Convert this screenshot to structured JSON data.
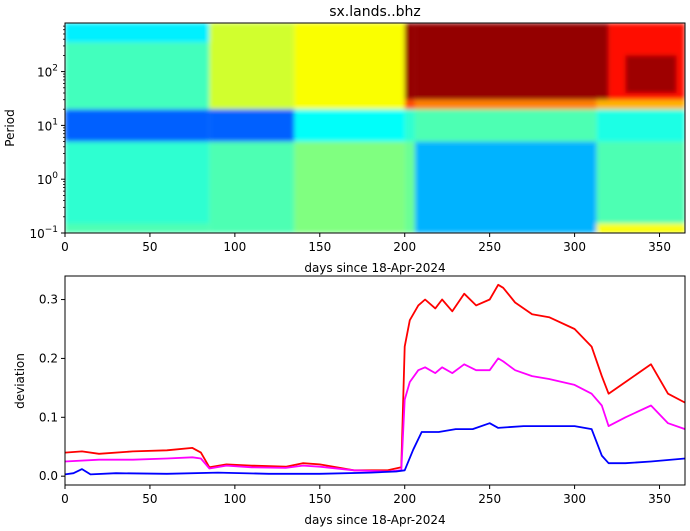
{
  "chart_data": [
    {
      "type": "heatmap",
      "title": "sx.lands..bhz",
      "xlabel": "days since 18-Apr-2024",
      "ylabel": "Period",
      "xlim": [
        0,
        365
      ],
      "ylim": [
        0.1,
        800
      ],
      "yscale": "log",
      "xticks": [
        0,
        50,
        100,
        150,
        200,
        250,
        300,
        350
      ],
      "yticks": [
        {
          "value": 0.1,
          "base": "10",
          "exp": "−1"
        },
        {
          "value": 1,
          "base": "10",
          "exp": "0"
        },
        {
          "value": 10,
          "base": "10",
          "exp": "1"
        },
        {
          "value": 100,
          "base": "10",
          "exp": "2"
        }
      ],
      "colormap": "jet",
      "regions": [
        {
          "x": [
            0,
            85
          ],
          "y": [
            0.1,
            0.15
          ],
          "level": 0.45
        },
        {
          "x": [
            0,
            85
          ],
          "y": [
            0.15,
            5
          ],
          "level": 0.42
        },
        {
          "x": [
            0,
            85
          ],
          "y": [
            5,
            20
          ],
          "level": 0.22
        },
        {
          "x": [
            0,
            85
          ],
          "y": [
            20,
            350
          ],
          "level": 0.44
        },
        {
          "x": [
            0,
            85
          ],
          "y": [
            350,
            800
          ],
          "level": 0.36
        },
        {
          "x": [
            85,
            135
          ],
          "y": [
            0.1,
            5
          ],
          "level": 0.45
        },
        {
          "x": [
            85,
            135
          ],
          "y": [
            5,
            20
          ],
          "level": 0.22
        },
        {
          "x": [
            85,
            135
          ],
          "y": [
            20,
            800
          ],
          "level": 0.58
        },
        {
          "x": [
            135,
            200
          ],
          "y": [
            0.1,
            5
          ],
          "level": 0.5
        },
        {
          "x": [
            135,
            200
          ],
          "y": [
            5,
            20
          ],
          "level": 0.38
        },
        {
          "x": [
            135,
            200
          ],
          "y": [
            20,
            800
          ],
          "level": 0.62
        },
        {
          "x": [
            200,
            206
          ],
          "y": [
            0.1,
            5
          ],
          "level": 0.48
        },
        {
          "x": [
            200,
            206
          ],
          "y": [
            5,
            20
          ],
          "level": 0.42
        },
        {
          "x": [
            200,
            206
          ],
          "y": [
            20,
            30
          ],
          "level": 0.8
        },
        {
          "x": [
            200,
            206
          ],
          "y": [
            30,
            800
          ],
          "level": 0.98
        },
        {
          "x": [
            206,
            313
          ],
          "y": [
            0.1,
            5
          ],
          "level": 0.3
        },
        {
          "x": [
            206,
            313
          ],
          "y": [
            5,
            20
          ],
          "level": 0.45
        },
        {
          "x": [
            206,
            313
          ],
          "y": [
            20,
            30
          ],
          "level": 0.75
        },
        {
          "x": [
            206,
            320
          ],
          "y": [
            30,
            800
          ],
          "level": 0.98
        },
        {
          "x": [
            313,
            365
          ],
          "y": [
            0.1,
            0.15
          ],
          "level": 0.62
        },
        {
          "x": [
            313,
            365
          ],
          "y": [
            0.15,
            5
          ],
          "level": 0.45
        },
        {
          "x": [
            313,
            365
          ],
          "y": [
            5,
            20
          ],
          "level": 0.4
        },
        {
          "x": [
            313,
            365
          ],
          "y": [
            20,
            30
          ],
          "level": 0.7
        },
        {
          "x": [
            320,
            365
          ],
          "y": [
            30,
            800
          ],
          "level": 0.86
        },
        {
          "x": [
            330,
            360
          ],
          "y": [
            40,
            200
          ],
          "level": 0.97
        }
      ]
    },
    {
      "type": "line",
      "title": "",
      "xlabel": "days since 18-Apr-2024",
      "ylabel": "deviation",
      "xlim": [
        0,
        365
      ],
      "ylim": [
        -0.015,
        0.34
      ],
      "xticks": [
        0,
        50,
        100,
        150,
        200,
        250,
        300,
        350
      ],
      "yticks": [
        "0.0",
        "0.1",
        "0.2",
        "0.3"
      ],
      "series": [
        {
          "color": "#ff0000",
          "x": [
            0,
            10,
            20,
            40,
            60,
            75,
            80,
            85,
            95,
            110,
            130,
            140,
            150,
            170,
            190,
            198,
            200,
            203,
            208,
            212,
            218,
            222,
            228,
            235,
            242,
            250,
            255,
            258,
            265,
            275,
            285,
            300,
            310,
            316,
            320,
            330,
            345,
            355,
            365
          ],
          "y": [
            0.04,
            0.042,
            0.038,
            0.042,
            0.044,
            0.048,
            0.04,
            0.015,
            0.02,
            0.018,
            0.016,
            0.022,
            0.02,
            0.01,
            0.01,
            0.015,
            0.22,
            0.265,
            0.29,
            0.3,
            0.285,
            0.3,
            0.28,
            0.31,
            0.29,
            0.3,
            0.325,
            0.32,
            0.295,
            0.275,
            0.27,
            0.25,
            0.22,
            0.17,
            0.14,
            0.16,
            0.19,
            0.14,
            0.125
          ]
        },
        {
          "color": "#ff00ff",
          "x": [
            0,
            20,
            40,
            60,
            75,
            80,
            85,
            95,
            110,
            130,
            140,
            150,
            170,
            190,
            198,
            200,
            203,
            208,
            212,
            218,
            222,
            228,
            235,
            242,
            250,
            255,
            258,
            265,
            275,
            285,
            300,
            310,
            316,
            320,
            330,
            345,
            355,
            365
          ],
          "y": [
            0.025,
            0.028,
            0.028,
            0.03,
            0.032,
            0.03,
            0.013,
            0.018,
            0.015,
            0.014,
            0.018,
            0.016,
            0.01,
            0.008,
            0.01,
            0.13,
            0.16,
            0.18,
            0.185,
            0.175,
            0.185,
            0.175,
            0.19,
            0.18,
            0.18,
            0.2,
            0.195,
            0.18,
            0.17,
            0.165,
            0.155,
            0.14,
            0.12,
            0.085,
            0.1,
            0.12,
            0.09,
            0.08
          ]
        },
        {
          "color": "#0000ff",
          "x": [
            0,
            5,
            10,
            15,
            30,
            60,
            90,
            120,
            150,
            180,
            195,
            200,
            205,
            210,
            220,
            230,
            240,
            250,
            255,
            270,
            300,
            310,
            316,
            320,
            330,
            345,
            365
          ],
          "y": [
            0.003,
            0.005,
            0.012,
            0.003,
            0.005,
            0.004,
            0.006,
            0.004,
            0.004,
            0.006,
            0.008,
            0.01,
            0.045,
            0.075,
            0.075,
            0.08,
            0.08,
            0.09,
            0.082,
            0.085,
            0.085,
            0.08,
            0.035,
            0.022,
            0.022,
            0.025,
            0.03
          ]
        }
      ]
    }
  ]
}
